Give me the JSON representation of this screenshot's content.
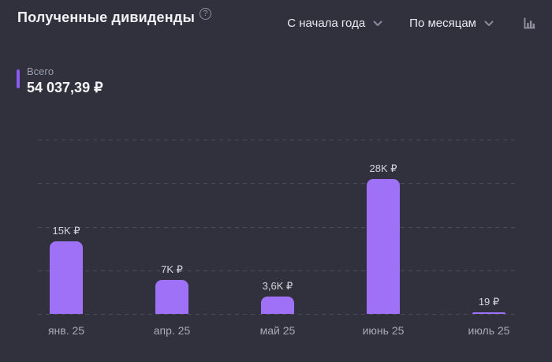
{
  "header": {
    "title": "Полученные дивиденды",
    "help_glyph": "?"
  },
  "controls": {
    "period": {
      "value": "С начала года"
    },
    "grouping": {
      "value": "По месяцам"
    },
    "chart_type_icon": "bar-chart"
  },
  "total": {
    "label": "Всего",
    "value": "54 037,39 ₽"
  },
  "chart_data": {
    "type": "bar",
    "title": "Полученные дивиденды",
    "categories": [
      "янв. 25",
      "апр. 25",
      "май 25",
      "июнь 25",
      "июль 25"
    ],
    "values": [
      15000,
      7000,
      3600,
      28000,
      19
    ],
    "value_labels": [
      "15K ₽",
      "7K ₽",
      "3,6K ₽",
      "28K ₽",
      "19 ₽"
    ],
    "currency": "₽",
    "xlabel": "",
    "ylabel": "",
    "ylim": [
      0,
      35000
    ],
    "grid": true,
    "gridline_count": 5,
    "legend": "none",
    "bar_color": "#9e71f6"
  },
  "colors": {
    "background": "#30313c",
    "accent": "#8c5cf2",
    "bar": "#9e71f6",
    "gridline": "#4a4c5b",
    "title_text": "#f1f2f7",
    "muted_text": "#9a9eae"
  }
}
